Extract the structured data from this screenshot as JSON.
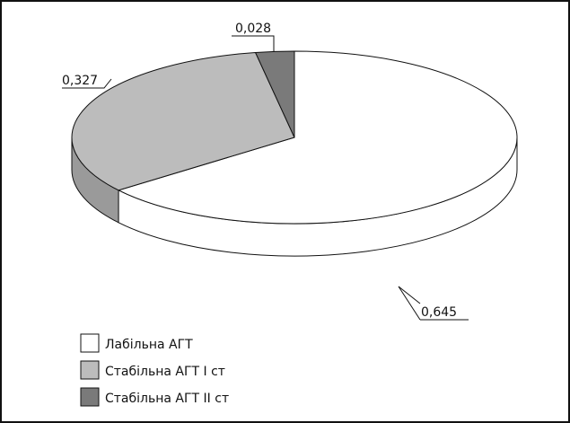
{
  "chart_data": {
    "type": "pie",
    "style": "3d",
    "categories": [
      "Лабільна АГТ",
      "Стабільна АГТ І ст",
      "Стабільна АГТ ІІ ст"
    ],
    "values": [
      0.645,
      0.327,
      0.028
    ],
    "value_labels": [
      "0,645",
      "0,327",
      "0,028"
    ],
    "legend_labels": [
      "Лабільна АГТ",
      "Стабільна АГТ І ст",
      "Стабільна АГТ ІІ ст"
    ],
    "colors": [
      "#ffffff",
      "#bcbcbc",
      "#7a7a7a"
    ],
    "legend_position": "bottom-left",
    "grid": false
  }
}
